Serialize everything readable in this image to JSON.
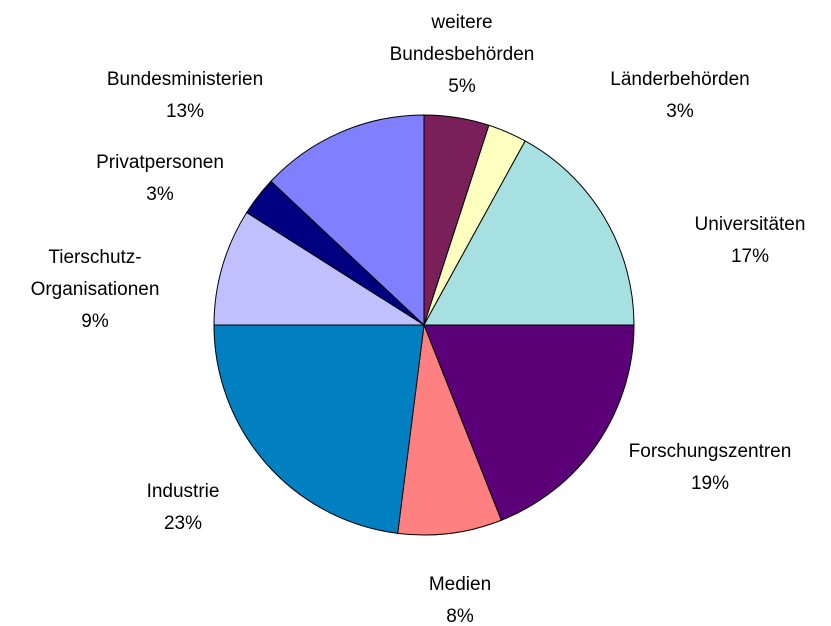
{
  "chart_data": {
    "type": "pie",
    "categories": [
      "weitere\nBundesbehörden",
      "Länderbehörden",
      "Universitäten",
      "Forschungszentren",
      "Medien",
      "Industrie",
      "Tierschutz-\nOrganisationen",
      "Privatpersonen",
      "Bundesministerien"
    ],
    "values": [
      5,
      3,
      17,
      19,
      8,
      23,
      9,
      3,
      13
    ],
    "value_labels": [
      "5%",
      "3%",
      "17%",
      "19%",
      "8%",
      "23%",
      "9%",
      "3%",
      "13%"
    ],
    "colors": [
      "#7b1f5b",
      "#ffffc0",
      "#a6e0e0",
      "#5c0078",
      "#ff8080",
      "#0080c0",
      "#c0c0ff",
      "#000080",
      "#8080ff"
    ]
  }
}
